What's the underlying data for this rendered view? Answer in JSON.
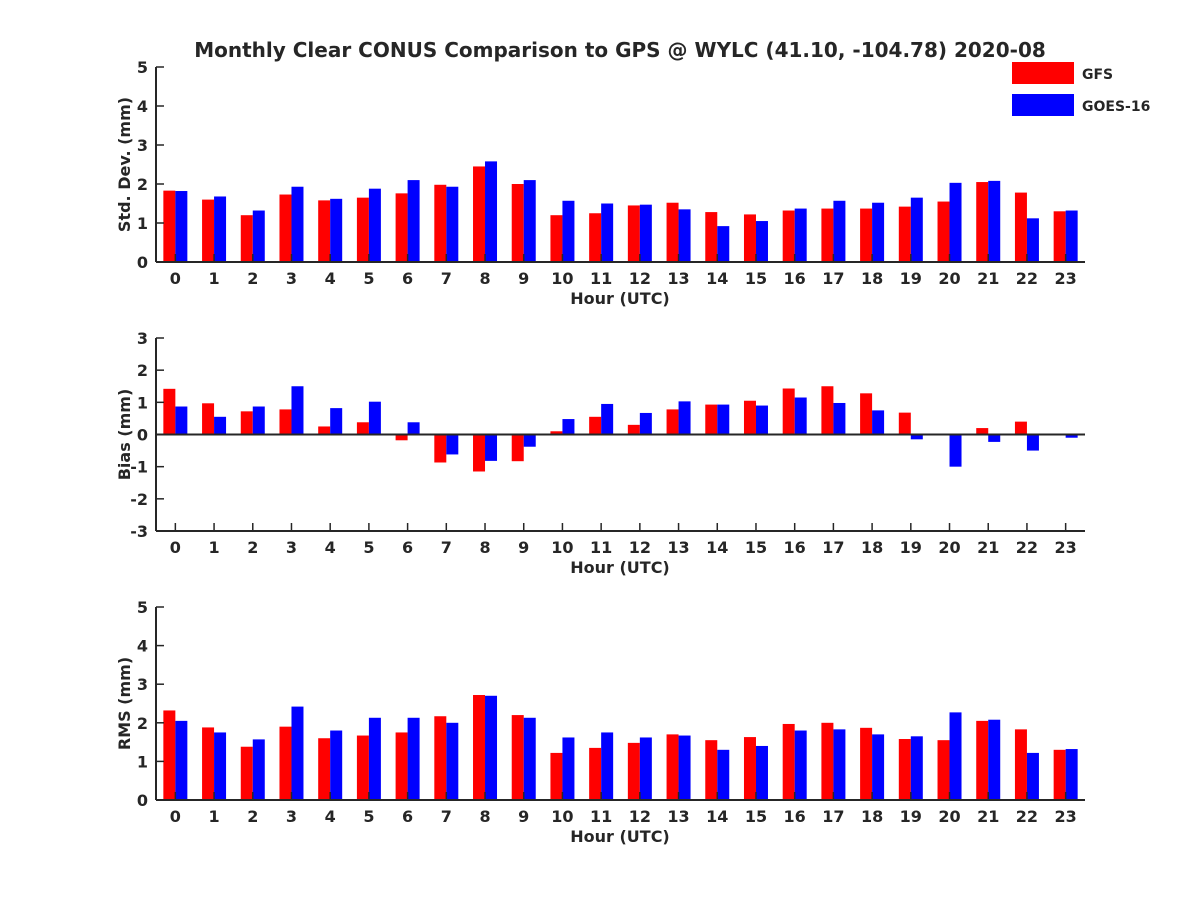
{
  "chart_data": {
    "title": "Monthly Clear CONUS Comparison to GPS @ WYLC (41.10, -104.78) 2020-08",
    "legend": [
      {
        "name": "GFS",
        "color": "#ff0000"
      },
      {
        "name": "GOES-16",
        "color": "#0000ff"
      }
    ],
    "legend_position": "top-right",
    "colors": {
      "gfs": "#ff0000",
      "goes": "#0000ff",
      "axis": "#262626"
    },
    "categories": [
      "0",
      "1",
      "2",
      "3",
      "4",
      "5",
      "6",
      "7",
      "8",
      "9",
      "10",
      "11",
      "12",
      "13",
      "14",
      "15",
      "16",
      "17",
      "18",
      "19",
      "20",
      "21",
      "22",
      "23"
    ],
    "charts": [
      {
        "type": "bar",
        "xlabel": "Hour (UTC)",
        "ylabel": "Std. Dev. (mm)",
        "ylim": [
          0,
          5
        ],
        "yticks": [
          "0",
          "1",
          "2",
          "3",
          "4",
          "5"
        ],
        "series": [
          {
            "name": "GFS",
            "values": [
              1.83,
              1.6,
              1.2,
              1.73,
              1.58,
              1.65,
              1.76,
              1.98,
              2.45,
              2.0,
              1.2,
              1.25,
              1.45,
              1.52,
              1.28,
              1.22,
              1.32,
              1.37,
              1.37,
              1.42,
              1.55,
              2.05,
              1.78,
              1.3
            ]
          },
          {
            "name": "GOES-16",
            "values": [
              1.82,
              1.68,
              1.32,
              1.93,
              1.62,
              1.88,
              2.1,
              1.93,
              2.58,
              2.1,
              1.57,
              1.5,
              1.47,
              1.35,
              0.92,
              1.05,
              1.37,
              1.57,
              1.52,
              1.65,
              2.03,
              2.08,
              1.12,
              1.32
            ]
          }
        ]
      },
      {
        "type": "bar",
        "xlabel": "Hour (UTC)",
        "ylabel": "Bias (mm)",
        "ylim": [
          -3,
          3
        ],
        "yticks": [
          "-3",
          "-2",
          "-1",
          "0",
          "1",
          "2",
          "3"
        ],
        "series": [
          {
            "name": "GFS",
            "values": [
              1.42,
              0.97,
              0.72,
              0.78,
              0.25,
              0.38,
              -0.18,
              -0.87,
              -1.15,
              -0.83,
              0.1,
              0.55,
              0.3,
              0.78,
              0.93,
              1.05,
              1.43,
              1.5,
              1.28,
              0.68,
              -0.03,
              0.2,
              0.4,
              0.0
            ]
          },
          {
            "name": "GOES-16",
            "values": [
              0.87,
              0.55,
              0.87,
              1.5,
              0.82,
              1.02,
              0.38,
              -0.62,
              -0.82,
              -0.38,
              0.48,
              0.95,
              0.67,
              1.03,
              0.93,
              0.9,
              1.15,
              0.98,
              0.75,
              -0.15,
              -1.0,
              -0.23,
              -0.5,
              -0.1
            ]
          }
        ]
      },
      {
        "type": "bar",
        "xlabel": "Hour (UTC)",
        "ylabel": "RMS (mm)",
        "ylim": [
          0,
          5
        ],
        "yticks": [
          "0",
          "1",
          "2",
          "3",
          "4",
          "5"
        ],
        "series": [
          {
            "name": "GFS",
            "values": [
              2.32,
              1.88,
              1.38,
              1.9,
              1.6,
              1.67,
              1.75,
              2.17,
              2.72,
              2.2,
              1.22,
              1.35,
              1.48,
              1.7,
              1.55,
              1.63,
              1.97,
              2.0,
              1.87,
              1.58,
              1.55,
              2.05,
              1.83,
              1.3
            ]
          },
          {
            "name": "GOES-16",
            "values": [
              2.05,
              1.75,
              1.57,
              2.42,
              1.8,
              2.13,
              2.13,
              2.0,
              2.7,
              2.13,
              1.62,
              1.75,
              1.62,
              1.67,
              1.3,
              1.4,
              1.8,
              1.83,
              1.7,
              1.65,
              2.27,
              2.08,
              1.22,
              1.32
            ]
          }
        ]
      }
    ]
  }
}
